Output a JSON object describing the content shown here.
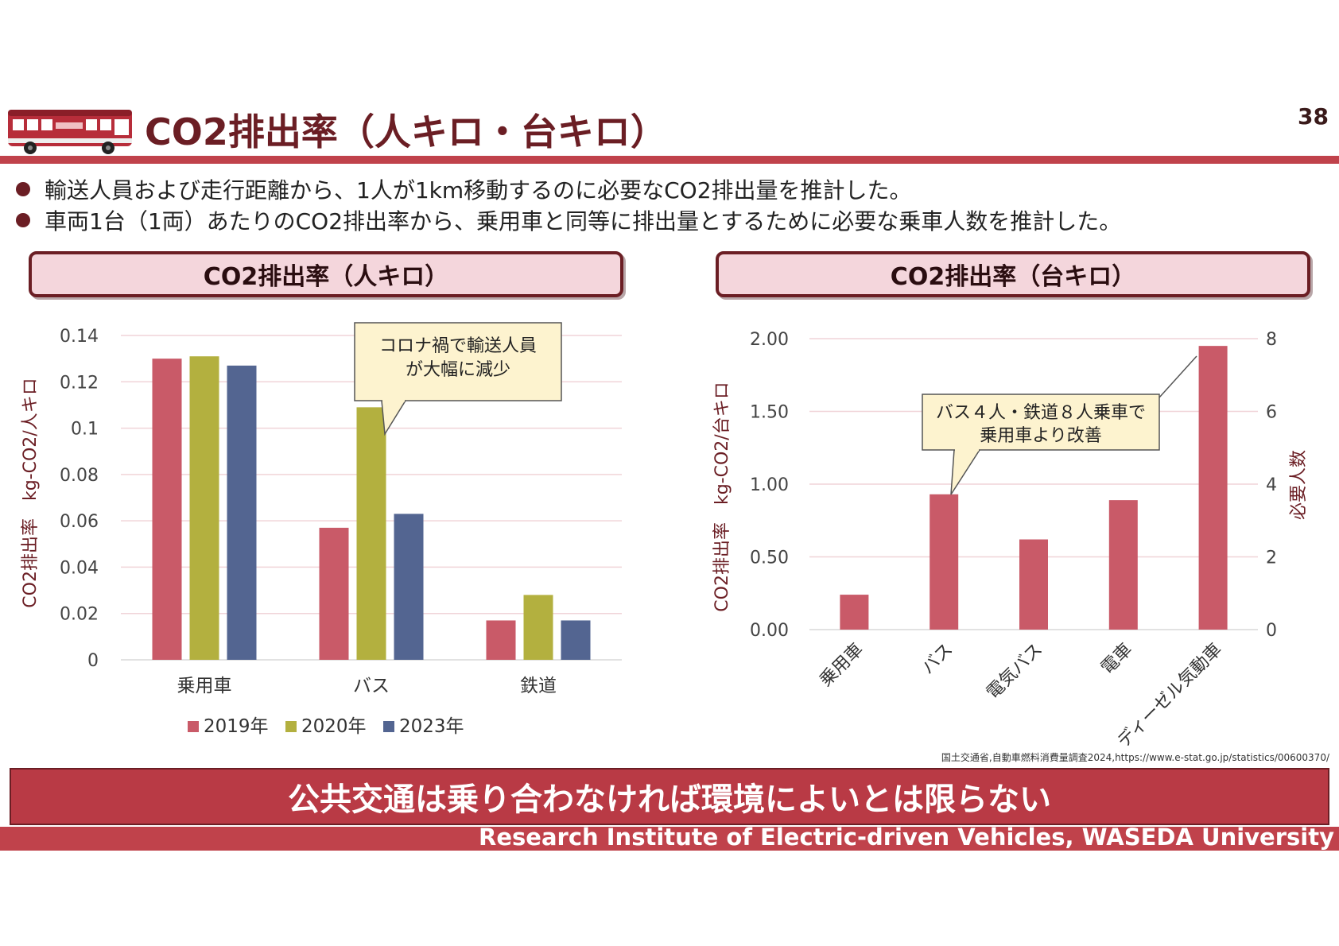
{
  "slide": {
    "title": "CO2排出率（人キロ・台キロ）",
    "page_number": "38",
    "bullets": [
      "輸送人員および走行距離から、1人が1km移動するのに必要なCO2排出量を推計した。",
      "車両1台（1両）あたりのCO2排出率から、乗用車と同等に排出量とするために必要な乗車人数を推計した。"
    ],
    "left_panel_title": "CO2排出率（人キロ）",
    "right_panel_title": "CO2排出率（台キロ）",
    "source": "国土交通省,自動車燃料消費量調査2024,https://www.e-stat.go.jp/statistics/00600370/",
    "conclusion": "公共交通は乗り合わなければ環境によいとは限らない",
    "footer": "Research Institute of Electric-driven Vehicles, WASEDA University",
    "colors": {
      "accent": "#c0424b",
      "dark": "#6b1e24",
      "panel_bg": "#f4d6dc"
    }
  },
  "chart_data": [
    {
      "type": "bar",
      "title": "CO2排出率（人キロ）",
      "ylabel": "CO2排出率　kg-CO2/人キロ",
      "xlabel": "",
      "categories": [
        "乗用車",
        "バス",
        "鉄道"
      ],
      "series": [
        {
          "name": "2019年",
          "values": [
            0.13,
            0.057,
            0.017
          ],
          "color": "#c95a68"
        },
        {
          "name": "2020年",
          "values": [
            0.131,
            0.109,
            0.028
          ],
          "color": "#b3b03f"
        },
        {
          "name": "2023年",
          "values": [
            0.127,
            0.063,
            0.017
          ],
          "color": "#536591"
        }
      ],
      "ylim": [
        0,
        0.14
      ],
      "yticks": [
        "0",
        "0.02",
        "0.04",
        "0.06",
        "0.08",
        "0.1",
        "0.12",
        "0.14"
      ],
      "grid": true,
      "legend": "bottom",
      "annotation": [
        "コロナ禍で輸送人員",
        "が大幅に減少"
      ]
    },
    {
      "type": "bar",
      "title": "CO2排出率（台キロ）",
      "ylabel": "CO2排出率　kg-CO2/台キロ",
      "y2label": "必要人数",
      "categories": [
        "乗用車",
        "バス",
        "電気バス",
        "電車",
        "ディーゼル気動車"
      ],
      "values": [
        0.24,
        0.93,
        0.62,
        0.89,
        1.95
      ],
      "color": "#c95a68",
      "ylim": [
        0,
        2.0
      ],
      "yticks": [
        "0.00",
        "0.50",
        "1.00",
        "1.50",
        "2.00"
      ],
      "y2lim": [
        0,
        8
      ],
      "y2ticks": [
        "0",
        "2",
        "4",
        "6",
        "8"
      ],
      "grid": true,
      "annotation": [
        "バス４人・鉄道８人乗車で",
        "乗用車より改善"
      ]
    }
  ]
}
